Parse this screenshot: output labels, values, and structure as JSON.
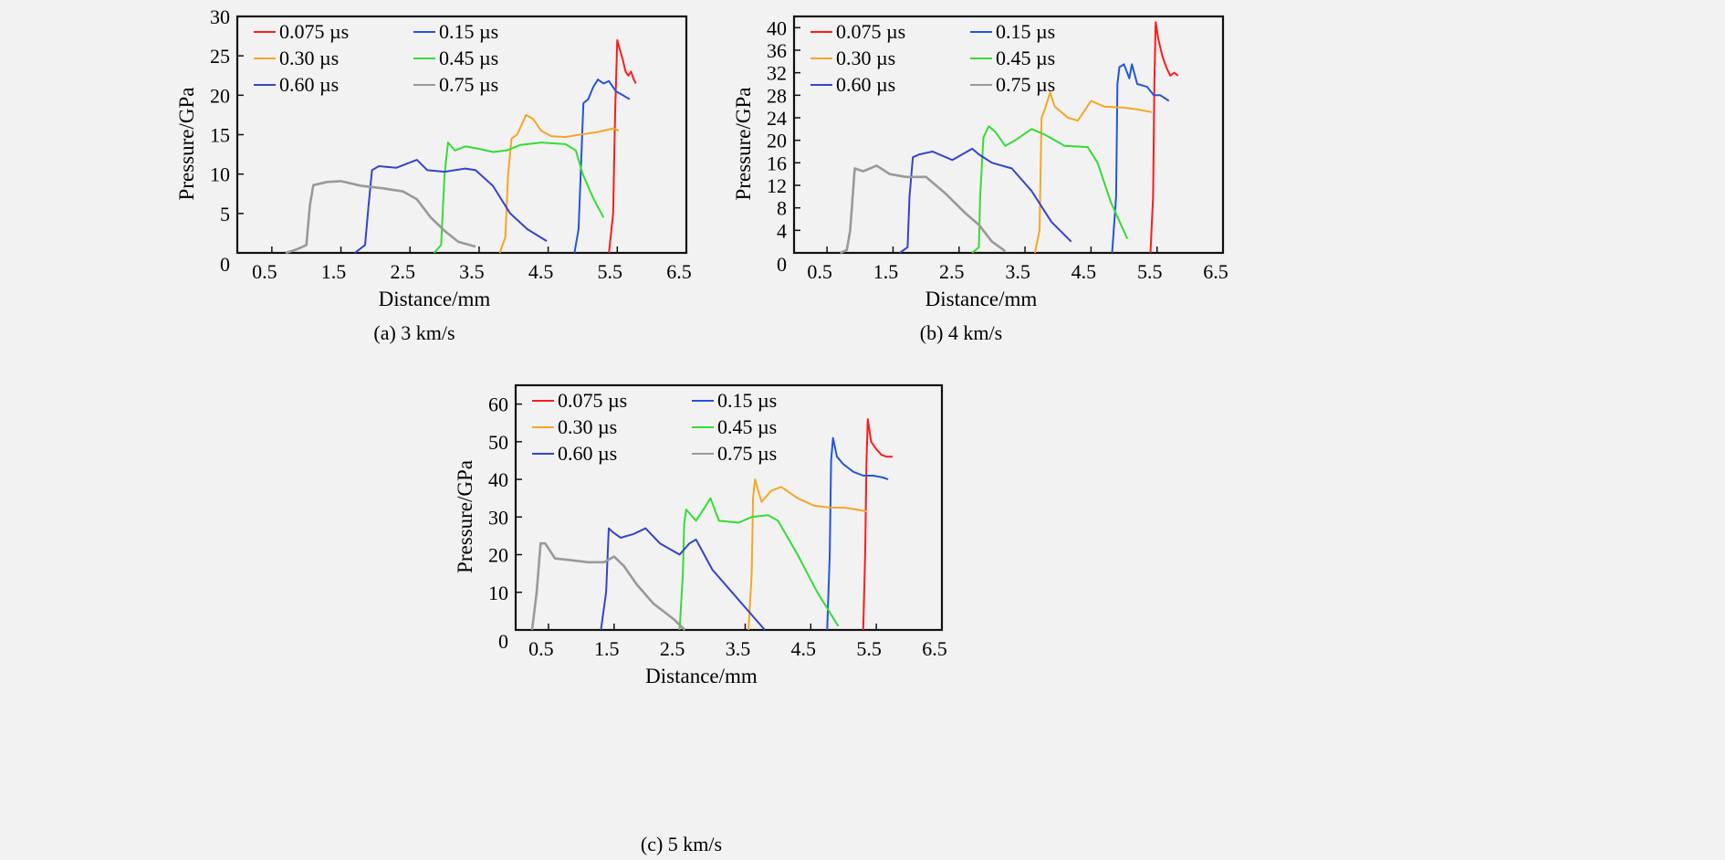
{
  "chart_data": [
    {
      "type": "line",
      "caption": "(a) 3 km/s",
      "xlabel": "Distance/mm",
      "ylabel": "Pressure/GPa",
      "xlim": [
        0,
        6.5
      ],
      "ylim": [
        0,
        30
      ],
      "xticks": [
        0.5,
        1.5,
        2.5,
        3.5,
        4.5,
        5.5,
        6.5
      ],
      "xtick_labels": [
        "0.5",
        "1.5",
        "2.5",
        "3.5",
        "4.5",
        "5.5",
        "6.5"
      ],
      "yticks": [
        0,
        5,
        10,
        15,
        20,
        25,
        30
      ],
      "ytick_labels": [
        "0",
        "5",
        "10",
        "15",
        "20",
        "25",
        "30"
      ],
      "legend_position": "top-left",
      "series": [
        {
          "name": "0.075 µs",
          "color": "#ff1a1a",
          "x": [
            5.38,
            5.44,
            5.47,
            5.5,
            5.53,
            5.58,
            5.62,
            5.66,
            5.7,
            5.74,
            5.77
          ],
          "y": [
            0,
            5,
            18,
            27,
            26,
            24.5,
            23,
            22.5,
            23,
            22,
            21.5
          ]
        },
        {
          "name": "0.15 µs",
          "color": "#2255dd",
          "x": [
            4.88,
            4.94,
            4.98,
            5.01,
            5.08,
            5.15,
            5.22,
            5.3,
            5.38,
            5.48,
            5.58,
            5.68
          ],
          "y": [
            0,
            3,
            12,
            19,
            19.5,
            21,
            22,
            21.5,
            21.8,
            20.5,
            20,
            19.5
          ]
        },
        {
          "name": "0.30 µs",
          "color": "#f5a623",
          "x": [
            3.8,
            3.88,
            3.92,
            3.97,
            4.05,
            4.18,
            4.28,
            4.4,
            4.55,
            4.75,
            4.95,
            5.2,
            5.45,
            5.52
          ],
          "y": [
            0,
            2,
            10,
            14.5,
            15,
            17.5,
            17,
            15.5,
            14.8,
            14.7,
            15,
            15.3,
            15.8,
            15.5
          ]
        },
        {
          "name": "0.45 µs",
          "color": "#33dd33",
          "x": [
            2.85,
            2.95,
            3.0,
            3.05,
            3.15,
            3.3,
            3.5,
            3.7,
            3.9,
            4.1,
            4.4,
            4.75,
            4.9,
            5.0,
            5.15,
            5.3
          ],
          "y": [
            0,
            1,
            10,
            14,
            13,
            13.5,
            13.2,
            12.8,
            13,
            13.7,
            14,
            13.8,
            13,
            10,
            7,
            4.5
          ]
        },
        {
          "name": "0.60 µs",
          "color": "#3344cc",
          "x": [
            1.7,
            1.85,
            1.9,
            1.95,
            2.05,
            2.3,
            2.6,
            2.75,
            3.0,
            3.3,
            3.45,
            3.7,
            3.95,
            4.2,
            4.48
          ],
          "y": [
            0,
            1,
            6,
            10.5,
            11,
            10.8,
            11.8,
            10.5,
            10.3,
            10.7,
            10.5,
            8.5,
            5,
            3,
            1.5
          ]
        },
        {
          "name": "0.75 µs",
          "color": "#999999",
          "x": [
            0.7,
            0.85,
            1.0,
            1.05,
            1.1,
            1.3,
            1.5,
            1.8,
            2.1,
            2.4,
            2.6,
            2.8,
            3.0,
            3.2,
            3.45
          ],
          "y": [
            0,
            0.4,
            1,
            6,
            8.6,
            9,
            9.1,
            8.5,
            8.2,
            7.8,
            6.8,
            4.5,
            2.8,
            1.4,
            0.8
          ]
        }
      ]
    },
    {
      "type": "line",
      "caption": "(b) 4 km/s",
      "xlabel": "Distance/mm",
      "ylabel": "Pressure/GPa",
      "xlim": [
        0,
        6.5
      ],
      "ylim": [
        0,
        42
      ],
      "xticks": [
        0.5,
        1.5,
        2.5,
        3.5,
        4.5,
        5.5,
        6.5
      ],
      "xtick_labels": [
        "0.5",
        "1.5",
        "2.5",
        "3.5",
        "4.5",
        "5.5",
        "6.5"
      ],
      "yticks": [
        0,
        4,
        8,
        12,
        16,
        20,
        24,
        28,
        32,
        36,
        40
      ],
      "ytick_labels": [
        "0",
        "4",
        "8",
        "12",
        "16",
        "20",
        "24",
        "28",
        "32",
        "36",
        "40"
      ],
      "legend_position": "top-left",
      "series": [
        {
          "name": "0.075 µs",
          "color": "#ff1a1a",
          "x": [
            5.4,
            5.44,
            5.46,
            5.48,
            5.52,
            5.58,
            5.64,
            5.7,
            5.76,
            5.82
          ],
          "y": [
            0,
            10,
            30,
            41,
            38,
            35,
            33,
            31.5,
            32,
            31.5
          ]
        },
        {
          "name": "0.15 µs",
          "color": "#2255dd",
          "x": [
            4.82,
            4.88,
            4.9,
            4.93,
            5.0,
            5.08,
            5.12,
            5.2,
            5.35,
            5.45,
            5.55,
            5.68
          ],
          "y": [
            0,
            10,
            30,
            33,
            33.5,
            31,
            33.5,
            30,
            29.5,
            28,
            28,
            27
          ]
        },
        {
          "name": "0.30 µs",
          "color": "#f5a623",
          "x": [
            3.65,
            3.72,
            3.75,
            3.8,
            3.88,
            3.95,
            4.15,
            4.3,
            4.5,
            4.7,
            5.0,
            5.2,
            5.42
          ],
          "y": [
            0,
            4,
            24,
            25.5,
            28.5,
            26,
            24,
            23.5,
            27,
            26,
            25.8,
            25.5,
            25
          ]
        },
        {
          "name": "0.45 µs",
          "color": "#33dd33",
          "x": [
            2.7,
            2.8,
            2.82,
            2.87,
            2.95,
            3.05,
            3.2,
            3.35,
            3.6,
            3.8,
            4.1,
            4.45,
            4.6,
            4.8,
            5.05
          ],
          "y": [
            0,
            1,
            10,
            20.5,
            22.5,
            21.5,
            19,
            20,
            22,
            21,
            19,
            18.8,
            16,
            9,
            2.5
          ]
        },
        {
          "name": "0.60 µs",
          "color": "#3344cc",
          "x": [
            1.6,
            1.72,
            1.75,
            1.8,
            1.9,
            2.1,
            2.4,
            2.7,
            2.8,
            3.0,
            3.3,
            3.6,
            3.9,
            4.2
          ],
          "y": [
            0,
            1,
            10,
            17,
            17.5,
            18,
            16.5,
            18.5,
            17.5,
            16,
            15,
            11,
            5.5,
            2
          ]
        },
        {
          "name": "0.75 µs",
          "color": "#999999",
          "x": [
            0.7,
            0.8,
            0.85,
            0.92,
            1.05,
            1.25,
            1.45,
            1.7,
            2.0,
            2.3,
            2.6,
            2.8,
            3.0,
            3.2
          ],
          "y": [
            0,
            0.5,
            4,
            15,
            14.5,
            15.5,
            14,
            13.5,
            13.5,
            10.5,
            7,
            5,
            2,
            0.3
          ]
        }
      ]
    },
    {
      "type": "line",
      "caption": "(c) 5 km/s",
      "xlabel": "Distance/mm",
      "ylabel": "Pressure/GPa",
      "xlim": [
        0,
        6.5
      ],
      "ylim": [
        0,
        65
      ],
      "xticks": [
        0.5,
        1.5,
        2.5,
        3.5,
        4.5,
        5.5,
        6.5
      ],
      "xtick_labels": [
        "0.5",
        "1.5",
        "2.5",
        "3.5",
        "4.5",
        "5.5",
        "6.5"
      ],
      "yticks": [
        0,
        10,
        20,
        30,
        40,
        50,
        60
      ],
      "ytick_labels": [
        "0",
        "10",
        "20",
        "30",
        "40",
        "50",
        "60"
      ],
      "legend_position": "top-left",
      "series": [
        {
          "name": "0.075 µs",
          "color": "#ff1a1a",
          "x": [
            5.3,
            5.33,
            5.35,
            5.37,
            5.42,
            5.5,
            5.58,
            5.66,
            5.75
          ],
          "y": [
            0,
            20,
            45,
            56,
            50,
            48,
            46.5,
            46,
            46
          ]
        },
        {
          "name": "0.15 µs",
          "color": "#2255dd",
          "x": [
            4.75,
            4.79,
            4.81,
            4.84,
            4.9,
            5.0,
            5.15,
            5.3,
            5.45,
            5.6,
            5.68
          ],
          "y": [
            0,
            20,
            45,
            51,
            46,
            44,
            42,
            41,
            41,
            40.5,
            40
          ]
        },
        {
          "name": "0.30 µs",
          "color": "#f5a623",
          "x": [
            3.55,
            3.6,
            3.62,
            3.65,
            3.75,
            3.9,
            4.05,
            4.3,
            4.55,
            4.8,
            5.0,
            5.2,
            5.35
          ],
          "y": [
            0,
            15,
            35,
            40,
            34,
            37,
            38,
            35,
            33,
            32.5,
            32.5,
            32,
            31.5
          ]
        },
        {
          "name": "0.45 µs",
          "color": "#33dd33",
          "x": [
            2.5,
            2.55,
            2.57,
            2.6,
            2.75,
            2.9,
            2.97,
            3.1,
            3.4,
            3.6,
            3.85,
            4.0,
            4.3,
            4.6,
            4.92
          ],
          "y": [
            0,
            15,
            28,
            32,
            29,
            33,
            35,
            29,
            28.5,
            30,
            30.5,
            29,
            20,
            10,
            1
          ]
        },
        {
          "name": "0.60 µs",
          "color": "#3344cc",
          "x": [
            1.3,
            1.38,
            1.42,
            1.48,
            1.6,
            1.8,
            1.98,
            2.2,
            2.5,
            2.65,
            2.75,
            3.0,
            3.3,
            3.6,
            3.8
          ],
          "y": [
            0,
            10,
            27,
            26,
            24.5,
            25.5,
            27,
            23,
            20,
            23,
            24,
            16,
            10,
            4,
            0
          ]
        },
        {
          "name": "0.75 µs",
          "color": "#999999",
          "x": [
            0.25,
            0.32,
            0.38,
            0.45,
            0.6,
            0.85,
            1.1,
            1.35,
            1.5,
            1.65,
            1.85,
            2.1,
            2.4,
            2.58
          ],
          "y": [
            0,
            10,
            23,
            23,
            19,
            18.5,
            18,
            18,
            19.5,
            17,
            12,
            7,
            3,
            0
          ]
        }
      ]
    }
  ]
}
